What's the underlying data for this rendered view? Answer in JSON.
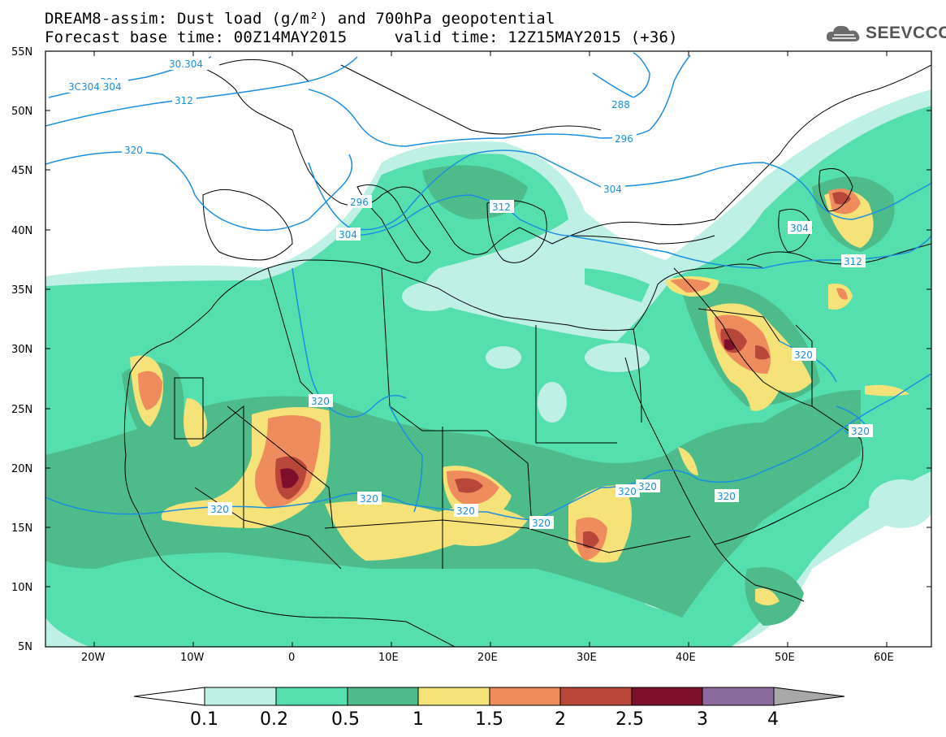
{
  "title": {
    "line1": "DREAM8-assim: Dust load (g/m²) and 700hPa geopotential",
    "line2": "Forecast base time: 00Z14MAY2015     valid time: 12Z15MAY2015 (+36)"
  },
  "logo": {
    "text": "SEEVCCC",
    "icon": "cloud-icon"
  },
  "map": {
    "lat_labels": [
      "55N",
      "50N",
      "45N",
      "40N",
      "35N",
      "30N",
      "25N",
      "20N",
      "15N",
      "10N",
      "5N"
    ],
    "lon_labels": [
      "20W",
      "10W",
      "0",
      "10E",
      "20E",
      "30E",
      "40E",
      "50E",
      "60E"
    ],
    "contour_labels": [
      "288",
      "296",
      "296",
      "304",
      "304",
      "304",
      "304",
      "312",
      "312",
      "312",
      "320",
      "320",
      "320",
      "320",
      "320",
      "320",
      "320",
      "320",
      "320",
      "320",
      "320",
      "3C304 304",
      "30.304"
    ]
  },
  "colorbar": {
    "labels": [
      "0.1",
      "0.2",
      "0.5",
      "1",
      "1.5",
      "2",
      "2.5",
      "3",
      "4"
    ],
    "colors": [
      "#ffffff",
      "#bff0e6",
      "#55dfae",
      "#4dbb8a",
      "#f5e37a",
      "#ef8c5e",
      "#b8473a",
      "#7e0f2a",
      "#8c6a9e",
      "#a8a8a8"
    ]
  },
  "palette": {
    "c01": "#bff0e6",
    "c02": "#55dfae",
    "c05": "#4dbb8a",
    "c1": "#f5e37a",
    "c15": "#ef8c5e",
    "c2": "#b8473a",
    "c25": "#7e0f2a",
    "contour": "#1a8fe0"
  }
}
